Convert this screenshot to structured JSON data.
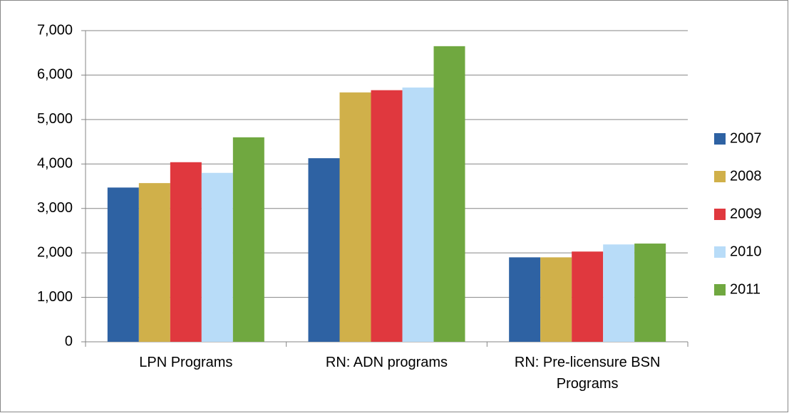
{
  "chart_data": {
    "type": "bar",
    "categories": [
      "LPN Programs",
      "RN: ADN programs",
      "RN: Pre-licensure BSN Programs"
    ],
    "series": [
      {
        "name": "2007",
        "color": "#2e62a3",
        "values": [
          3470,
          4130,
          1900
        ]
      },
      {
        "name": "2008",
        "color": "#d0b04a",
        "values": [
          3570,
          5610,
          1900
        ]
      },
      {
        "name": "2009",
        "color": "#e0383e",
        "values": [
          4040,
          5660,
          2030
        ]
      },
      {
        "name": "2010",
        "color": "#b8dcf8",
        "values": [
          3800,
          5720,
          2190
        ]
      },
      {
        "name": "2011",
        "color": "#70a840",
        "values": [
          4600,
          6650,
          2210
        ]
      }
    ],
    "ylim": [
      0,
      7000
    ],
    "yticks": [
      0,
      {
        "value": 1000,
        "label": "1,000"
      },
      {
        "value": 2000,
        "label": "2,000"
      },
      {
        "value": 3000,
        "label": "3,000"
      },
      {
        "value": 4000,
        "label": "4,000"
      },
      {
        "value": 5000,
        "label": "5,000"
      },
      {
        "value": 6000,
        "label": "6,000"
      },
      {
        "value": 7000,
        "label": "7,000"
      }
    ],
    "grid": true,
    "legend": "right"
  }
}
